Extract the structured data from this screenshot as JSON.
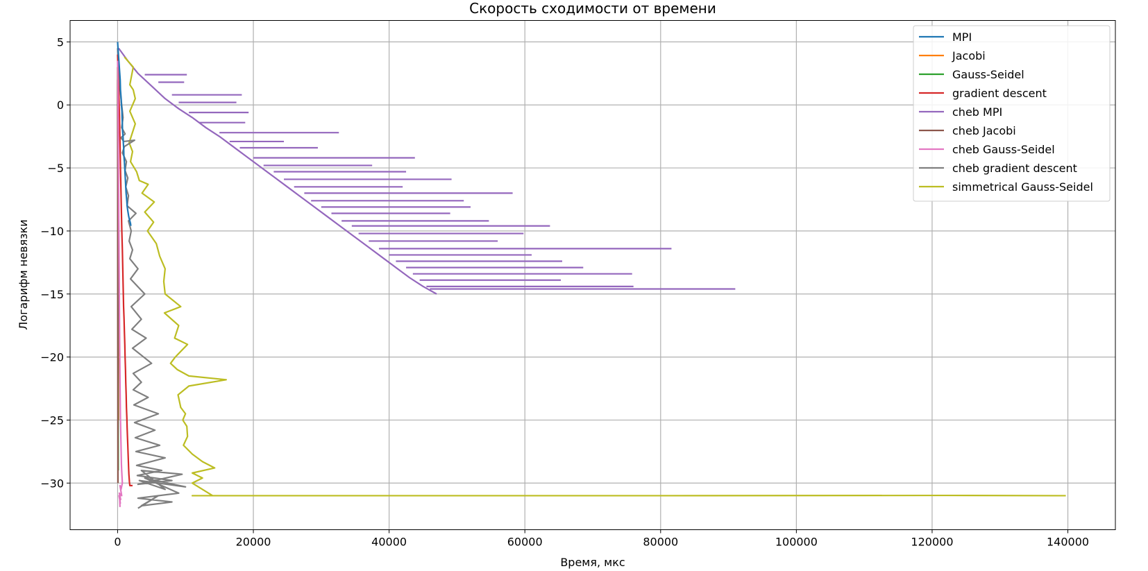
{
  "chart_data": {
    "type": "line",
    "title": "Скорость сходимости от времени",
    "xlabel": "Время, мкс",
    "ylabel": "Логарифм невязки",
    "xlim": [
      -7000,
      147000
    ],
    "ylim": [
      -33.7,
      6.7
    ],
    "xticks": [
      0,
      20000,
      40000,
      60000,
      80000,
      100000,
      120000,
      140000
    ],
    "yticks": [
      5,
      0,
      -5,
      -10,
      -15,
      -20,
      -25,
      -30
    ],
    "xtick_labels": [
      "0",
      "20000",
      "40000",
      "60000",
      "80000",
      "100000",
      "120000",
      "140000"
    ],
    "ytick_labels": [
      "5",
      "0",
      "−5",
      "−10",
      "−15",
      "−20",
      "−25",
      "−30"
    ],
    "grid": true,
    "legend_position": "top-right",
    "series": [
      {
        "name": "MPI",
        "color": "#1f77b4",
        "x": [
          0,
          120,
          250,
          380,
          420,
          520,
          560,
          640,
          660,
          700,
          720,
          800,
          840,
          900,
          920,
          1000,
          1050,
          1100,
          1150,
          1200,
          1250,
          1300,
          1350,
          1400,
          1450,
          1500,
          1560,
          1620,
          1700,
          1800,
          1900,
          1950
        ],
        "y": [
          5.0,
          4.0,
          3.0,
          2.0,
          1.2,
          0.5,
          0.0,
          -0.5,
          -1.0,
          -1.5,
          -2.0,
          -2.5,
          -3.0,
          -3.5,
          -4.0,
          -4.5,
          -5.0,
          -5.5,
          -6.0,
          -6.5,
          -7.0,
          -7.3,
          -7.6,
          -8.0,
          -8.2,
          -8.4,
          -8.6,
          -8.8,
          -9.0,
          -9.2,
          -9.4,
          -9.6
        ]
      },
      {
        "name": "Jacobi",
        "color": "#ff7f0e",
        "x": [
          0,
          20,
          40,
          60,
          80,
          100,
          120
        ],
        "y": [
          3.0,
          -2.0,
          -7.0,
          -12.0,
          -17.0,
          -22.0,
          -25.0
        ]
      },
      {
        "name": "Gauss-Seidel",
        "color": "#2ca02c",
        "x": [
          0,
          15,
          30,
          45,
          60,
          75,
          90
        ],
        "y": [
          3.0,
          -3.0,
          -9.0,
          -15.0,
          -20.0,
          -25.0,
          -29.0
        ]
      },
      {
        "name": "gradient descent",
        "color": "#d62728",
        "x": [
          0,
          100,
          200,
          280,
          350,
          420,
          500,
          560,
          620,
          700,
          760,
          820,
          880,
          950,
          1000,
          1060,
          1100,
          1160,
          1200,
          1260,
          1300,
          1360,
          1400,
          1450,
          1500,
          1540,
          1580,
          1620,
          1660,
          1700,
          1740,
          1780,
          1800,
          1850,
          2000,
          2200
        ],
        "y": [
          4.0,
          2.0,
          0.5,
          -1.0,
          -3.0,
          -5.0,
          -7.0,
          -8.5,
          -10.0,
          -11.5,
          -13.0,
          -14.5,
          -16.0,
          -17.0,
          -18.0,
          -19.0,
          -20.0,
          -21.0,
          -22.0,
          -23.0,
          -24.0,
          -24.8,
          -25.6,
          -26.3,
          -27.0,
          -27.6,
          -28.2,
          -28.8,
          -29.3,
          -29.6,
          -29.9,
          -30.1,
          -30.2,
          -30.2,
          -30.2,
          -30.2
        ]
      },
      {
        "name": "cheb MPI",
        "color": "#9467bd",
        "x": [
          150,
          1500,
          3000,
          5000,
          7000,
          9000,
          11000,
          13000,
          15000,
          17000,
          19000,
          21000,
          23000,
          25000,
          27000,
          29000,
          31000,
          33000,
          35000,
          37000,
          39000,
          41000,
          43000,
          45000,
          47000
        ],
        "y": [
          4.5,
          3.5,
          2.5,
          1.5,
          0.5,
          -0.3,
          -1.0,
          -1.8,
          -2.5,
          -3.3,
          -4.1,
          -4.9,
          -5.7,
          -6.5,
          -7.3,
          -8.1,
          -8.9,
          -9.7,
          -10.5,
          -11.3,
          -12.1,
          -12.9,
          -13.7,
          -14.4,
          -15.0
        ],
        "spikes": [
          {
            "y": 2.4,
            "x1": 4000,
            "x2": 10200
          },
          {
            "y": 1.8,
            "x1": 6000,
            "x2": 9800
          },
          {
            "y": 0.8,
            "x1": 8000,
            "x2": 18300
          },
          {
            "y": 0.2,
            "x1": 9000,
            "x2": 17500
          },
          {
            "y": -0.6,
            "x1": 10500,
            "x2": 19300
          },
          {
            "y": -1.4,
            "x1": 12000,
            "x2": 18800
          },
          {
            "y": -2.2,
            "x1": 15000,
            "x2": 32600
          },
          {
            "y": -2.9,
            "x1": 16500,
            "x2": 24500
          },
          {
            "y": -3.4,
            "x1": 18000,
            "x2": 29500
          },
          {
            "y": -4.2,
            "x1": 20000,
            "x2": 43800
          },
          {
            "y": -4.8,
            "x1": 21500,
            "x2": 37500
          },
          {
            "y": -5.3,
            "x1": 23000,
            "x2": 42500
          },
          {
            "y": -5.9,
            "x1": 24500,
            "x2": 49200
          },
          {
            "y": -6.5,
            "x1": 26000,
            "x2": 42000
          },
          {
            "y": -7.0,
            "x1": 27500,
            "x2": 58200
          },
          {
            "y": -7.6,
            "x1": 28500,
            "x2": 51000
          },
          {
            "y": -8.1,
            "x1": 30000,
            "x2": 52000
          },
          {
            "y": -8.6,
            "x1": 31500,
            "x2": 49000
          },
          {
            "y": -9.2,
            "x1": 33000,
            "x2": 54700
          },
          {
            "y": -9.6,
            "x1": 34500,
            "x2": 63700
          },
          {
            "y": -10.2,
            "x1": 35500,
            "x2": 59800
          },
          {
            "y": -10.8,
            "x1": 37000,
            "x2": 56000
          },
          {
            "y": -11.4,
            "x1": 38500,
            "x2": 81600
          },
          {
            "y": -11.9,
            "x1": 40000,
            "x2": 61000
          },
          {
            "y": -12.4,
            "x1": 41000,
            "x2": 65500
          },
          {
            "y": -12.9,
            "x1": 42500,
            "x2": 68600
          },
          {
            "y": -13.4,
            "x1": 43500,
            "x2": 75800
          },
          {
            "y": -13.9,
            "x1": 44500,
            "x2": 65300
          },
          {
            "y": -14.4,
            "x1": 45500,
            "x2": 76000
          },
          {
            "y": -14.6,
            "x1": 46000,
            "x2": 91000
          }
        ]
      },
      {
        "name": "cheb Jacobi",
        "color": "#8c564b",
        "x": [
          0,
          10,
          20,
          30,
          40,
          50
        ],
        "y": [
          2.0,
          -5.0,
          -12.0,
          -19.0,
          -25.0,
          -30.0
        ]
      },
      {
        "name": "cheb Gauss-Seidel",
        "color": "#e377c2",
        "x": [
          0,
          50,
          100,
          150,
          200,
          250,
          300,
          350,
          420,
          480,
          520,
          560,
          600,
          650,
          700,
          500,
          350,
          600,
          250,
          450,
          200,
          400,
          300,
          350
        ],
        "y": [
          3.5,
          1.0,
          -3.0,
          -7.0,
          -11.0,
          -15.0,
          -19.0,
          -22.0,
          -25.0,
          -26.5,
          -27.5,
          -28.5,
          -29.0,
          -29.5,
          -30.0,
          -30.5,
          -30.2,
          -31.0,
          -30.8,
          -31.3,
          -31.0,
          -31.6,
          -31.2,
          -31.9
        ]
      },
      {
        "name": "cheb gradient descent",
        "color": "#7f7f7f",
        "x": [
          0,
          200,
          500,
          800,
          600,
          1100,
          500,
          900,
          2500,
          1000,
          700,
          1300,
          1100,
          1500,
          1200,
          1600,
          1400,
          2700,
          1600,
          2000,
          1700,
          2200,
          1800,
          3000,
          1900,
          4000,
          2000,
          3500,
          2100,
          4200,
          2200,
          5000,
          2300,
          3500,
          2300,
          4500,
          2400,
          6000,
          2500,
          5500,
          2600,
          6200,
          2700,
          7000,
          2800,
          6500,
          2900,
          8000,
          3000,
          9500,
          3500,
          7000,
          3200,
          10000,
          4000,
          9000,
          3000,
          8000,
          3500,
          6000,
          3000
        ],
        "y": [
          4.5,
          2.0,
          0.5,
          -1.0,
          -1.8,
          -2.3,
          -2.6,
          -2.9,
          -2.8,
          -3.3,
          -3.8,
          -4.5,
          -5.2,
          -5.8,
          -6.5,
          -7.2,
          -8.0,
          -8.6,
          -9.2,
          -10.0,
          -10.8,
          -11.5,
          -12.2,
          -13.0,
          -13.8,
          -15.0,
          -16.0,
          -17.0,
          -17.8,
          -18.5,
          -19.3,
          -20.5,
          -21.3,
          -22.0,
          -22.6,
          -23.2,
          -23.8,
          -24.5,
          -25.2,
          -25.8,
          -26.4,
          -27.0,
          -27.5,
          -28.0,
          -28.6,
          -29.0,
          -29.4,
          -29.8,
          -30.1,
          -29.3,
          -29.0,
          -30.5,
          -29.8,
          -30.3,
          -29.6,
          -30.8,
          -31.2,
          -31.5,
          -31.8,
          -31.0,
          -32.0
        ]
      },
      {
        "name": "simmetrical Gauss-Seidel",
        "color": "#bcbd22",
        "x": [
          1000,
          2300,
          1800,
          2300,
          2600,
          1800,
          2600,
          1700,
          2200,
          1900,
          2800,
          3200,
          4500,
          3600,
          5400,
          4000,
          5300,
          4400,
          5700,
          6200,
          7000,
          6800,
          7000,
          9300,
          6900,
          9000,
          8400,
          10300,
          8500,
          7800,
          8800,
          10500,
          16000,
          10500,
          8900,
          9300,
          10000,
          9600,
          10200,
          10300,
          9700,
          11000,
          12500,
          14300,
          11000,
          12500,
          11000,
          14000,
          11000,
          80000,
          122000,
          139700
        ],
        "y": [
          3.8,
          3.0,
          1.6,
          1.2,
          0.5,
          -0.5,
          -1.5,
          -3.0,
          -3.7,
          -4.5,
          -5.3,
          -6.0,
          -6.3,
          -7.0,
          -7.7,
          -8.5,
          -9.3,
          -10.0,
          -11.0,
          -12.0,
          -13.0,
          -14.0,
          -15.0,
          -16.0,
          -16.5,
          -17.5,
          -18.5,
          -19.0,
          -20.0,
          -20.5,
          -21.0,
          -21.5,
          -21.8,
          -22.3,
          -23.0,
          -24.0,
          -24.5,
          -25.0,
          -25.5,
          -26.3,
          -27.0,
          -27.7,
          -28.3,
          -28.8,
          -29.2,
          -29.6,
          -30.0,
          -31.0,
          -31.0,
          -31.0,
          -30.98,
          -31.0
        ]
      }
    ]
  }
}
